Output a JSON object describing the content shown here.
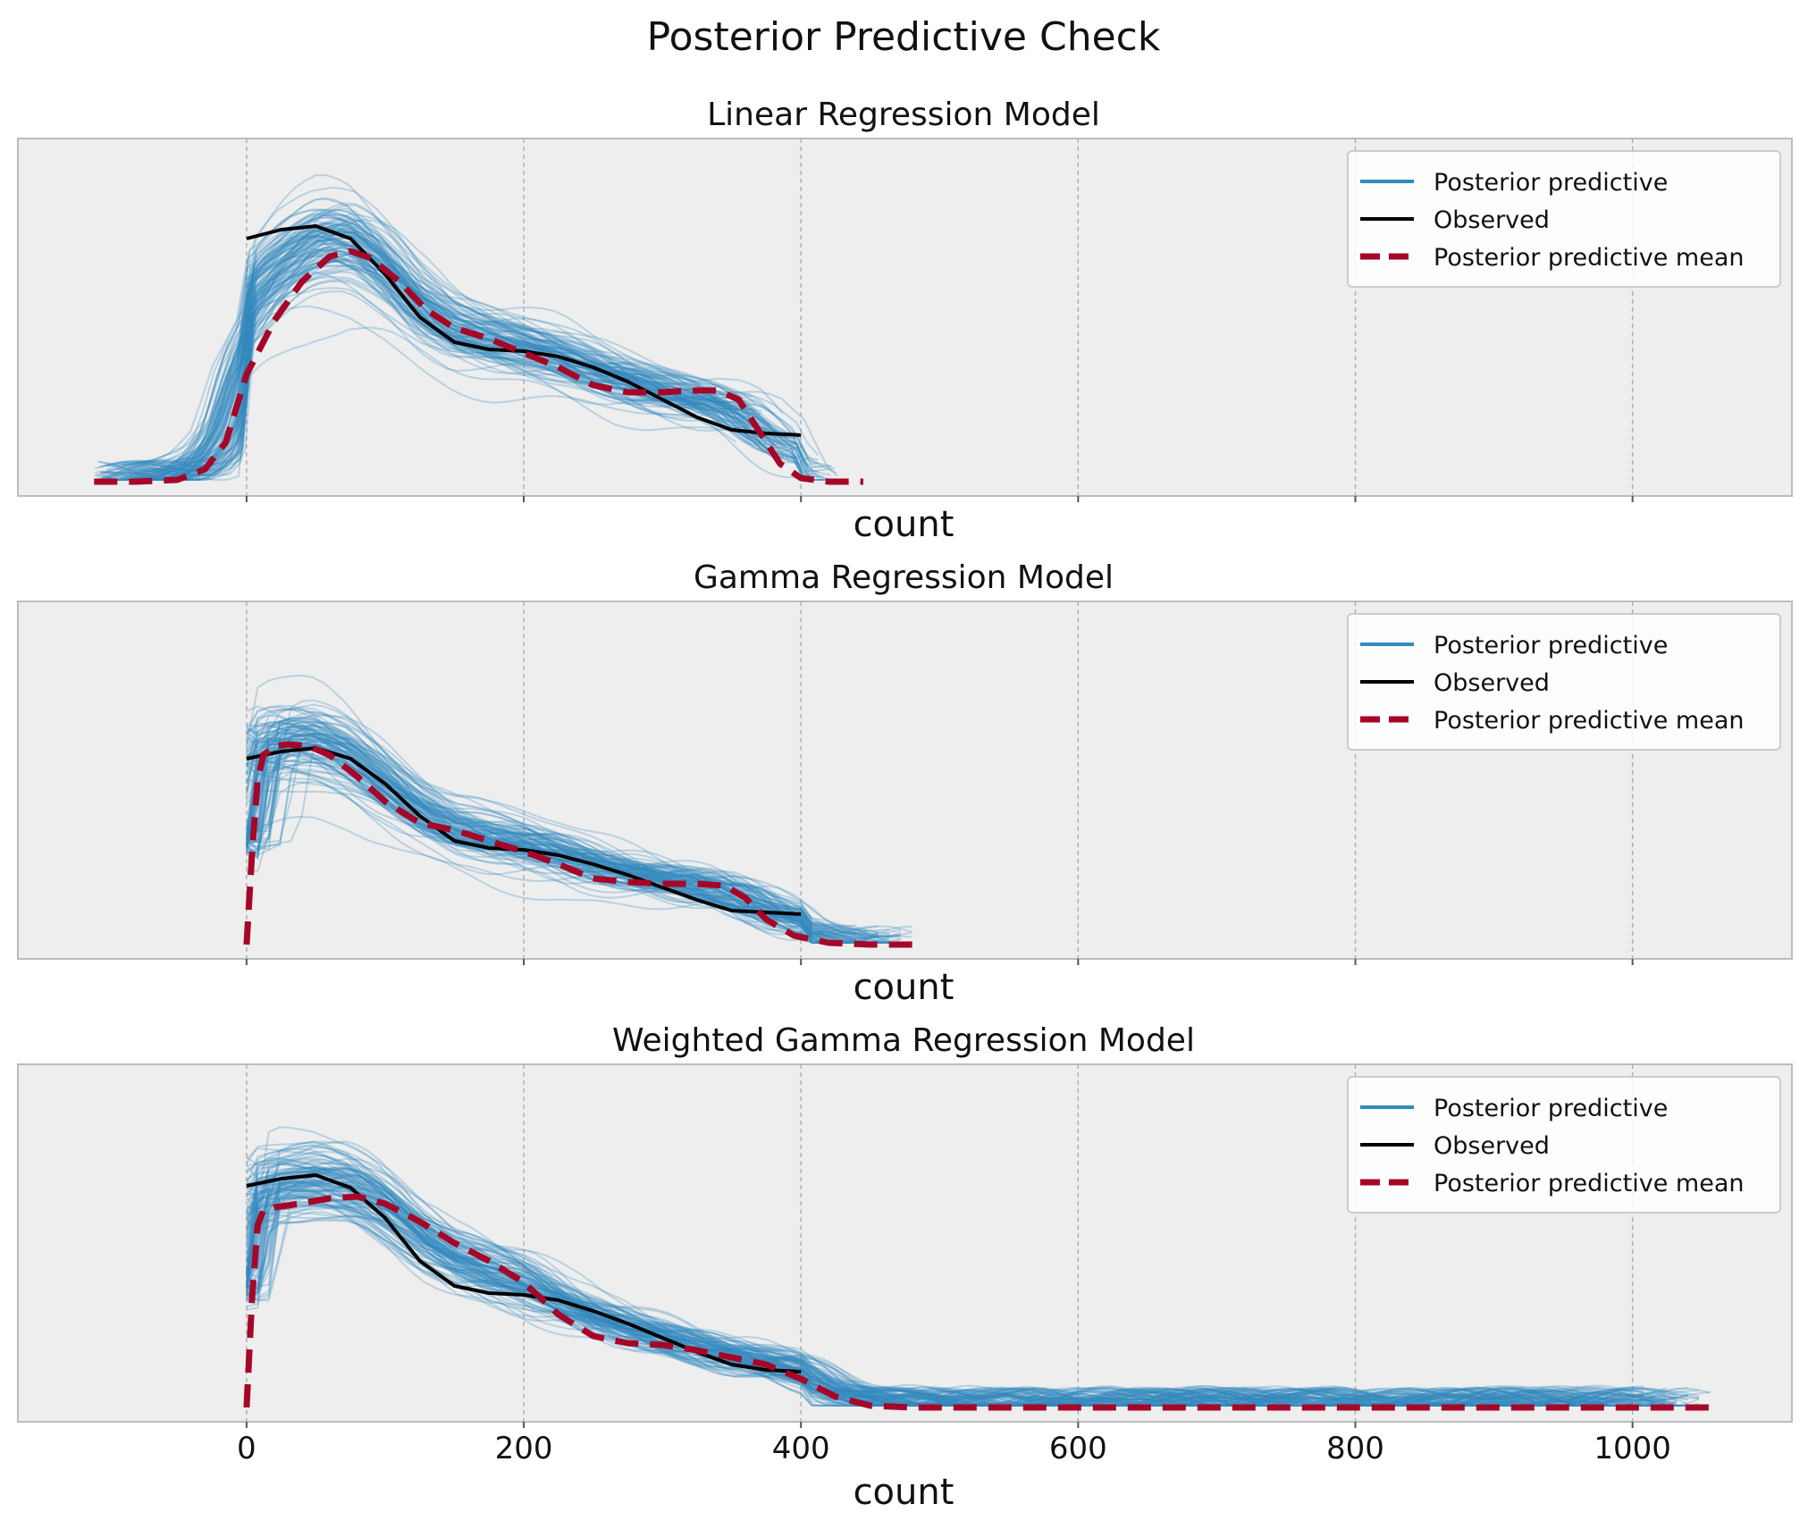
{
  "figure": {
    "title": "Posterior Predictive Check"
  },
  "colors": {
    "posterior": "#348ABD",
    "observed": "#000000",
    "mean": "#A60628",
    "axes_bg": "#EEEEEE",
    "grid": "#b0b0b0"
  },
  "chart_data": [
    {
      "type": "line",
      "title": "Linear Regression Model",
      "xlabel": "count",
      "xlim": [
        -165,
        1115
      ],
      "xticks": [
        0,
        200,
        400,
        600,
        800,
        1000
      ],
      "show_tick_labels": false,
      "grid": "x",
      "legend": {
        "placement": "top-right",
        "entries": [
          "Posterior predictive",
          "Observed",
          "Posterior predictive mean"
        ]
      },
      "posterior_range": [
        -110,
        430
      ],
      "series": [
        {
          "name": "Observed",
          "style": "solid",
          "x": [
            0,
            25,
            50,
            75,
            100,
            125,
            150,
            175,
            200,
            225,
            250,
            275,
            300,
            325,
            350,
            375,
            400
          ],
          "y": [
            0.72,
            0.745,
            0.755,
            0.72,
            0.62,
            0.5,
            0.43,
            0.41,
            0.405,
            0.39,
            0.36,
            0.32,
            0.27,
            0.22,
            0.185,
            0.175,
            0.17
          ]
        },
        {
          "name": "Posterior predictive mean",
          "style": "dashed",
          "x": [
            -110,
            -80,
            -50,
            -30,
            -15,
            0,
            20,
            40,
            60,
            75,
            90,
            110,
            130,
            150,
            175,
            200,
            225,
            250,
            275,
            300,
            320,
            340,
            355,
            370,
            385,
            400,
            420,
            445
          ],
          "y": [
            0.04,
            0.04,
            0.045,
            0.075,
            0.15,
            0.34,
            0.49,
            0.6,
            0.67,
            0.685,
            0.665,
            0.6,
            0.52,
            0.47,
            0.44,
            0.4,
            0.36,
            0.31,
            0.29,
            0.29,
            0.295,
            0.295,
            0.27,
            0.18,
            0.09,
            0.05,
            0.04,
            0.04
          ]
        }
      ]
    },
    {
      "type": "line",
      "title": "Gamma Regression Model",
      "xlabel": "count",
      "xlim": [
        -165,
        1115
      ],
      "xticks": [
        0,
        200,
        400,
        600,
        800,
        1000
      ],
      "show_tick_labels": false,
      "grid": "x",
      "legend": {
        "placement": "top-right",
        "entries": [
          "Posterior predictive",
          "Observed",
          "Posterior predictive mean"
        ]
      },
      "posterior_range": [
        0,
        485
      ],
      "series": [
        {
          "name": "Observed",
          "style": "solid",
          "x": [
            0,
            25,
            50,
            75,
            100,
            125,
            150,
            175,
            200,
            225,
            250,
            275,
            300,
            325,
            350,
            375,
            400
          ],
          "y": [
            0.56,
            0.58,
            0.59,
            0.56,
            0.49,
            0.4,
            0.33,
            0.31,
            0.305,
            0.29,
            0.265,
            0.235,
            0.2,
            0.165,
            0.135,
            0.13,
            0.125
          ]
        },
        {
          "name": "Posterior predictive mean",
          "style": "dashed",
          "x": [
            0,
            4,
            8,
            12,
            20,
            30,
            45,
            60,
            80,
            100,
            125,
            150,
            175,
            200,
            225,
            250,
            275,
            300,
            325,
            345,
            360,
            375,
            395,
            420,
            450,
            485
          ],
          "y": [
            0.04,
            0.3,
            0.5,
            0.57,
            0.595,
            0.6,
            0.595,
            0.57,
            0.51,
            0.44,
            0.38,
            0.36,
            0.33,
            0.3,
            0.265,
            0.225,
            0.215,
            0.21,
            0.21,
            0.205,
            0.17,
            0.11,
            0.065,
            0.045,
            0.04,
            0.04
          ]
        }
      ]
    },
    {
      "type": "line",
      "title": "Weighted Gamma Regression Model",
      "xlabel": "count",
      "xlim": [
        -165,
        1115
      ],
      "xticks": [
        0,
        200,
        400,
        600,
        800,
        1000
      ],
      "show_tick_labels": true,
      "grid": "x",
      "legend": {
        "placement": "top-right",
        "entries": [
          "Posterior predictive",
          "Observed",
          "Posterior predictive mean"
        ]
      },
      "posterior_range": [
        0,
        1060
      ],
      "series": [
        {
          "name": "Observed",
          "style": "solid",
          "x": [
            0,
            25,
            50,
            75,
            100,
            125,
            150,
            175,
            200,
            225,
            250,
            275,
            300,
            325,
            350,
            375,
            400
          ],
          "y": [
            0.66,
            0.68,
            0.69,
            0.655,
            0.57,
            0.45,
            0.38,
            0.36,
            0.355,
            0.34,
            0.31,
            0.275,
            0.235,
            0.195,
            0.16,
            0.145,
            0.14
          ]
        },
        {
          "name": "Posterior predictive mean",
          "style": "dashed",
          "x": [
            0,
            4,
            8,
            12,
            20,
            30,
            45,
            60,
            80,
            100,
            125,
            150,
            175,
            200,
            225,
            250,
            275,
            300,
            325,
            350,
            375,
            400,
            425,
            450,
            480,
            520,
            600,
            800,
            1060
          ],
          "y": [
            0.04,
            0.35,
            0.55,
            0.59,
            0.6,
            0.605,
            0.615,
            0.625,
            0.63,
            0.61,
            0.56,
            0.5,
            0.45,
            0.39,
            0.3,
            0.24,
            0.22,
            0.215,
            0.2,
            0.18,
            0.16,
            0.12,
            0.07,
            0.045,
            0.04,
            0.04,
            0.04,
            0.04,
            0.04
          ]
        }
      ]
    }
  ]
}
